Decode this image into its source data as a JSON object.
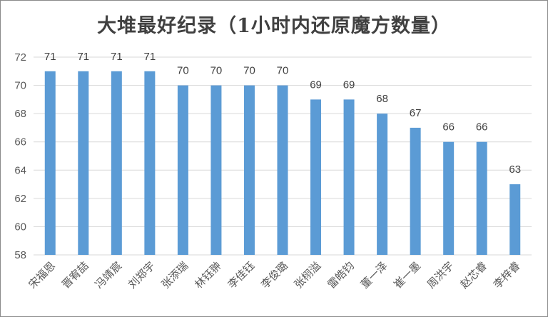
{
  "chart_data": {
    "type": "bar",
    "title": "大堆最好纪录（1小时内还原魔方数量）",
    "categories": [
      "宋福恩",
      "晋宥喆",
      "冯靖宸",
      "刘郑宇",
      "张添瑞",
      "林钰翀",
      "李佳钰",
      "李俊璐",
      "张栩溢",
      "雷皓钧",
      "董一泽",
      "崔一墨",
      "周洪宇",
      "赵芯睿",
      "李梓睿"
    ],
    "values": [
      71,
      71,
      71,
      71,
      70,
      70,
      70,
      70,
      69,
      69,
      68,
      67,
      66,
      66,
      63
    ],
    "ylim": [
      58,
      72
    ],
    "yticks": [
      58,
      60,
      62,
      64,
      66,
      68,
      70,
      72
    ],
    "grid": true,
    "bar_color": "#5b9bd5",
    "xlabel": "",
    "ylabel": ""
  }
}
